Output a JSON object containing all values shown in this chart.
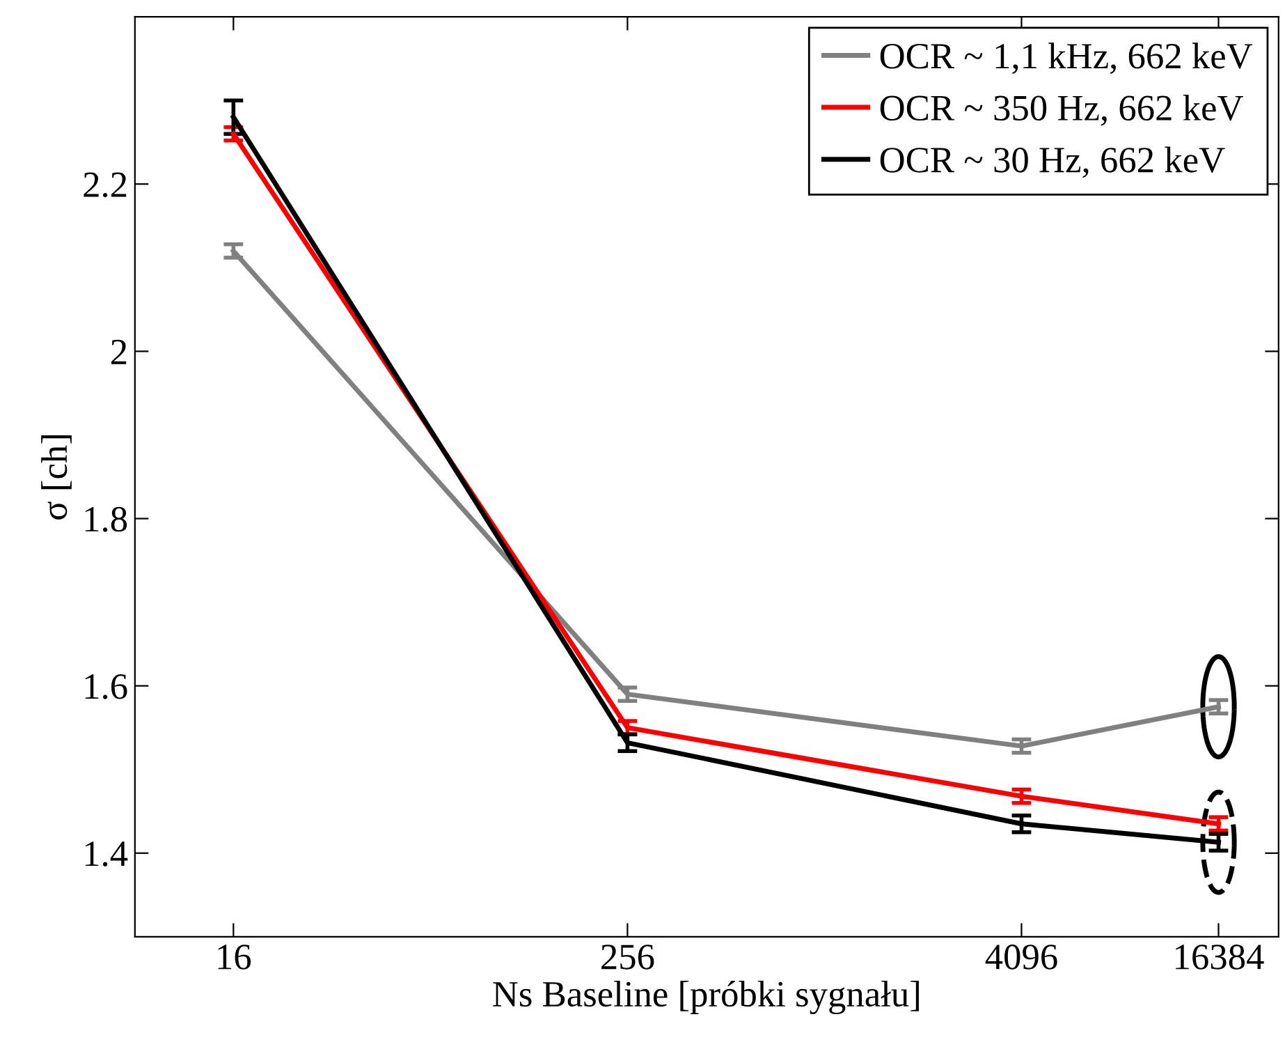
{
  "chart_data": {
    "type": "line",
    "xlabel": "Ns Baseline [próbki sygnału]",
    "ylabel": "σ [ch]",
    "log": "x",
    "x": [
      16,
      256,
      4096,
      16384
    ],
    "xlim": [
      8,
      25000
    ],
    "xticks": [
      16,
      256,
      4096,
      16384
    ],
    "ylim": [
      1.3,
      2.4
    ],
    "yticks": [
      1.4,
      1.6,
      1.8,
      2,
      2.2
    ],
    "legend": "top right",
    "grid": false,
    "marker": "none",
    "line_style": "solid",
    "series": [
      {
        "name": "OCR ~ 1,1 kHz, 662 keV",
        "color": "#808080",
        "values": [
          2.12,
          1.59,
          1.528,
          1.575
        ],
        "errors": [
          0.008,
          0.008,
          0.008,
          0.008
        ]
      },
      {
        "name": "OCR ~ 350 Hz, 662 keV",
        "color": "#ff0000",
        "values": [
          2.26,
          1.55,
          1.468,
          1.435
        ],
        "errors": [
          0.008,
          0.008,
          0.008,
          0.008
        ]
      },
      {
        "name": "OCR ~ 30 Hz, 662 keV",
        "color": "#000000",
        "values": [
          2.28,
          1.532,
          1.435,
          1.413
        ],
        "errors": [
          0.02,
          0.01,
          0.01,
          0.01
        ]
      }
    ]
  }
}
